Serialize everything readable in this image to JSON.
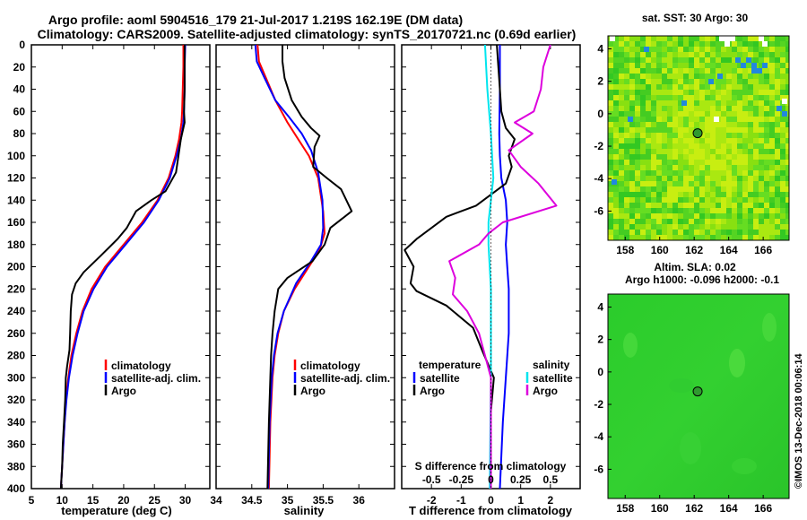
{
  "header": {
    "title_line1": "Argo profile: aoml 5904516_179 21-Jul-2017 1.219S 162.19E (DM data)",
    "title_line2": "Climatology: CARS2009. Satellite-adjusted climatology: synTS_20170721.nc (0.69d earlier)"
  },
  "colors": {
    "climatology": "#ff0000",
    "satellite": "#0000ff",
    "argo": "#000000",
    "sat_salinity": "#00e5ee",
    "argo_salinity": "#dd00dd",
    "map_base": "#22c422",
    "map_green": "#55dd22",
    "map_yellow": "#bbee11"
  },
  "credit": "©IMOS 13-Dec-2018 00:06:14",
  "chart_data": [
    {
      "type": "line",
      "name": "temperature",
      "xlabel": "temperature (deg C)",
      "xlim": [
        5,
        34
      ],
      "ylim": [
        0,
        400
      ],
      "xticks": [
        5,
        10,
        15,
        20,
        25,
        30
      ],
      "yticks": [
        0,
        20,
        40,
        60,
        80,
        100,
        120,
        140,
        160,
        180,
        200,
        220,
        240,
        260,
        280,
        300,
        320,
        340,
        360,
        380,
        400
      ],
      "legend": [
        "climatology",
        "satellite-adj. clim.",
        "Argo"
      ],
      "series": [
        {
          "name": "climatology",
          "color": "#ff0000",
          "points": [
            [
              29.7,
              0
            ],
            [
              29.7,
              20
            ],
            [
              29.6,
              40
            ],
            [
              29.5,
              60
            ],
            [
              29.4,
              70
            ],
            [
              29.0,
              85
            ],
            [
              28.4,
              100
            ],
            [
              27.3,
              120
            ],
            [
              25.5,
              140
            ],
            [
              23.0,
              160
            ],
            [
              20.0,
              180
            ],
            [
              17.0,
              200
            ],
            [
              14.8,
              220
            ],
            [
              13.3,
              240
            ],
            [
              12.3,
              260
            ],
            [
              11.5,
              280
            ],
            [
              11.0,
              300
            ],
            [
              10.6,
              320
            ],
            [
              10.4,
              340
            ],
            [
              10.2,
              360
            ],
            [
              10.0,
              380
            ],
            [
              9.8,
              400
            ]
          ]
        },
        {
          "name": "satellite-adj. clim.",
          "color": "#0000ff",
          "points": [
            [
              30.0,
              0
            ],
            [
              29.9,
              20
            ],
            [
              29.9,
              40
            ],
            [
              29.8,
              60
            ],
            [
              29.7,
              70
            ],
            [
              29.3,
              85
            ],
            [
              28.6,
              100
            ],
            [
              27.5,
              120
            ],
            [
              25.7,
              140
            ],
            [
              23.3,
              160
            ],
            [
              20.3,
              180
            ],
            [
              17.3,
              200
            ],
            [
              15.1,
              220
            ],
            [
              13.5,
              240
            ],
            [
              12.5,
              260
            ],
            [
              11.7,
              280
            ],
            [
              11.1,
              300
            ],
            [
              10.7,
              320
            ],
            [
              10.4,
              340
            ],
            [
              10.2,
              360
            ],
            [
              10.0,
              380
            ],
            [
              9.8,
              400
            ]
          ]
        },
        {
          "name": "Argo",
          "color": "#000000",
          "points": [
            [
              29.9,
              0
            ],
            [
              29.9,
              20
            ],
            [
              29.9,
              40
            ],
            [
              29.8,
              60
            ],
            [
              29.9,
              70
            ],
            [
              29.3,
              85
            ],
            [
              28.9,
              100
            ],
            [
              28.5,
              115
            ],
            [
              27.5,
              125
            ],
            [
              26.8,
              132
            ],
            [
              24.5,
              140
            ],
            [
              22.0,
              150
            ],
            [
              20.5,
              165
            ],
            [
              19.0,
              175
            ],
            [
              16.3,
              190
            ],
            [
              13.5,
              205
            ],
            [
              12.2,
              215
            ],
            [
              11.6,
              225
            ],
            [
              11.4,
              240
            ],
            [
              11.3,
              260
            ],
            [
              11.2,
              275
            ],
            [
              10.8,
              290
            ],
            [
              10.6,
              300
            ],
            [
              10.5,
              320
            ],
            [
              10.3,
              340
            ],
            [
              10.1,
              360
            ],
            [
              10.0,
              380
            ],
            [
              9.8,
              400
            ]
          ]
        }
      ]
    },
    {
      "type": "line",
      "name": "salinity",
      "xlabel": "salinity",
      "xlim": [
        34,
        36.5
      ],
      "ylim": [
        0,
        400
      ],
      "xticks": [
        34,
        34.5,
        35,
        35.5,
        36
      ],
      "legend": [
        "climatology",
        "satellite-adj. clim.",
        "Argo"
      ],
      "series": [
        {
          "name": "climatology",
          "color": "#ff0000",
          "points": [
            [
              34.58,
              0
            ],
            [
              34.6,
              15
            ],
            [
              34.7,
              30
            ],
            [
              34.83,
              50
            ],
            [
              35.0,
              70
            ],
            [
              35.15,
              85
            ],
            [
              35.3,
              100
            ],
            [
              35.43,
              120
            ],
            [
              35.5,
              150
            ],
            [
              35.52,
              170
            ],
            [
              35.45,
              185
            ],
            [
              35.3,
              200
            ],
            [
              35.1,
              220
            ],
            [
              34.95,
              240
            ],
            [
              34.87,
              260
            ],
            [
              34.82,
              280
            ],
            [
              34.79,
              300
            ],
            [
              34.76,
              340
            ],
            [
              34.74,
              400
            ]
          ]
        },
        {
          "name": "satellite-adj. clim.",
          "color": "#0000ff",
          "points": [
            [
              34.55,
              0
            ],
            [
              34.57,
              15
            ],
            [
              34.68,
              30
            ],
            [
              34.83,
              50
            ],
            [
              35.02,
              65
            ],
            [
              35.2,
              80
            ],
            [
              35.33,
              95
            ],
            [
              35.43,
              115
            ],
            [
              35.49,
              140
            ],
            [
              35.5,
              165
            ],
            [
              35.47,
              180
            ],
            [
              35.33,
              195
            ],
            [
              35.12,
              215
            ],
            [
              34.95,
              240
            ],
            [
              34.86,
              260
            ],
            [
              34.81,
              280
            ],
            [
              34.78,
              300
            ],
            [
              34.75,
              340
            ],
            [
              34.73,
              400
            ]
          ]
        },
        {
          "name": "Argo",
          "color": "#000000",
          "points": [
            [
              34.93,
              0
            ],
            [
              34.93,
              15
            ],
            [
              34.96,
              30
            ],
            [
              35.06,
              50
            ],
            [
              35.2,
              65
            ],
            [
              35.33,
              75
            ],
            [
              35.45,
              82
            ],
            [
              35.38,
              92
            ],
            [
              35.36,
              110
            ],
            [
              35.55,
              120
            ],
            [
              35.75,
              130
            ],
            [
              35.9,
              150
            ],
            [
              35.6,
              165
            ],
            [
              35.52,
              180
            ],
            [
              35.35,
              195
            ],
            [
              35.0,
              210
            ],
            [
              34.87,
              220
            ],
            [
              34.82,
              240
            ],
            [
              34.79,
              260
            ],
            [
              34.77,
              280
            ],
            [
              34.76,
              300
            ],
            [
              34.74,
              340
            ],
            [
              34.72,
              400
            ]
          ]
        }
      ]
    },
    {
      "type": "line",
      "name": "difference",
      "xlabel": "T difference from climatology",
      "top_axis_label": "S difference from climatology",
      "xlim": [
        -3,
        3
      ],
      "ylim": [
        0,
        400
      ],
      "xticks": [
        -2,
        -1,
        0,
        1,
        2
      ],
      "s_xlim": [
        -0.75,
        0.75
      ],
      "s_ticks": [
        -0.5,
        -0.25,
        0,
        0.25,
        0.5
      ],
      "legend_titles": {
        "temperature": "temperature",
        "salinity": "salinity"
      },
      "legend_left": [
        "satellite",
        "Argo"
      ],
      "legend_right": [
        "satellite",
        "Argo"
      ],
      "series": [
        {
          "name": "T satellite",
          "color": "#0000ff",
          "points": [
            [
              0.3,
              0
            ],
            [
              0.3,
              40
            ],
            [
              0.28,
              80
            ],
            [
              0.3,
              100
            ],
            [
              0.35,
              120
            ],
            [
              0.5,
              140
            ],
            [
              0.55,
              160
            ],
            [
              0.5,
              180
            ],
            [
              0.55,
              200
            ],
            [
              0.6,
              220
            ],
            [
              0.6,
              260
            ],
            [
              0.5,
              300
            ],
            [
              0.4,
              340
            ],
            [
              0.3,
              400
            ]
          ]
        },
        {
          "name": "T Argo",
          "color": "#000000",
          "points": [
            [
              0.2,
              0
            ],
            [
              0.3,
              40
            ],
            [
              0.35,
              60
            ],
            [
              0.5,
              75
            ],
            [
              0.8,
              85
            ],
            [
              0.6,
              100
            ],
            [
              0.7,
              110
            ],
            [
              0.5,
              125
            ],
            [
              -0.5,
              145
            ],
            [
              -1.5,
              155
            ],
            [
              -2.5,
              175
            ],
            [
              -2.9,
              185
            ],
            [
              -2.6,
              200
            ],
            [
              -2.7,
              215
            ],
            [
              -2.5,
              222
            ],
            [
              -1.5,
              235
            ],
            [
              -0.6,
              255
            ],
            [
              -0.3,
              275
            ],
            [
              0.1,
              300
            ],
            [
              0.0,
              330
            ],
            [
              0.0,
              400
            ]
          ]
        },
        {
          "name": "S satellite",
          "color": "#00e5ee",
          "points": [
            [
              -0.05,
              0
            ],
            [
              -0.03,
              40
            ],
            [
              0.0,
              80
            ],
            [
              0.02,
              120
            ],
            [
              -0.02,
              160
            ],
            [
              -0.02,
              180
            ],
            [
              0.0,
              220
            ],
            [
              0.0,
              300
            ],
            [
              -0.01,
              400
            ]
          ]
        },
        {
          "name": "S Argo",
          "color": "#dd00dd",
          "points": [
            [
              0.5,
              0
            ],
            [
              0.44,
              20
            ],
            [
              0.42,
              40
            ],
            [
              0.36,
              60
            ],
            [
              0.2,
              70
            ],
            [
              0.35,
              80
            ],
            [
              0.15,
              95
            ],
            [
              0.25,
              110
            ],
            [
              0.4,
              125
            ],
            [
              0.55,
              145
            ],
            [
              0.1,
              160
            ],
            [
              -0.02,
              170
            ],
            [
              -0.1,
              180
            ],
            [
              -0.35,
              195
            ],
            [
              -0.3,
              210
            ],
            [
              -0.32,
              225
            ],
            [
              -0.2,
              240
            ],
            [
              -0.1,
              260
            ],
            [
              -0.05,
              280
            ],
            [
              0.0,
              300
            ],
            [
              0.0,
              400
            ]
          ]
        }
      ]
    },
    {
      "type": "heatmap",
      "name": "sat-sst-map",
      "title": "sat. SST: 30 Argo: 30",
      "xlim": [
        157,
        167.5
      ],
      "ylim": [
        -7.8,
        4.8
      ],
      "xticks": [
        158,
        160,
        162,
        164,
        166
      ],
      "yticks": [
        4,
        2,
        0,
        -2,
        -4,
        -6
      ],
      "marker": [
        162.2,
        -1.2
      ]
    },
    {
      "type": "heatmap",
      "name": "altim-sla-map",
      "title_line1": "Altim. SLA: 0.02",
      "title_line2": "Argo h1000: -0.096 h2000: -0.1",
      "xlim": [
        157,
        167.5
      ],
      "ylim": [
        -7.8,
        4.8
      ],
      "xticks": [
        158,
        160,
        162,
        164,
        166
      ],
      "yticks": [
        4,
        2,
        0,
        -2,
        -4,
        -6
      ],
      "marker": [
        162.2,
        -1.2
      ]
    }
  ]
}
